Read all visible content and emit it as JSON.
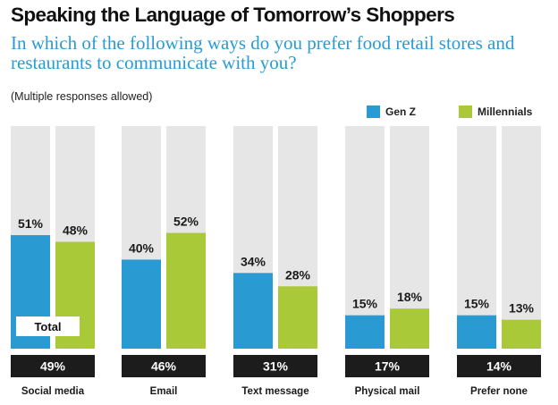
{
  "header": {
    "title": "Speaking the Language of Tomorrow’s Shoppers",
    "subtitle": "In which of the following ways do you prefer food retail stores and restaurants to communicate with you?",
    "note": "(Multiple responses allowed)"
  },
  "colors": {
    "genz": "#2a9bd2",
    "millennials": "#a9c938",
    "track": "#e6e6e6",
    "total_bg": "#1c1c1c",
    "title": "#111111",
    "subtitle": "#2a9bd2"
  },
  "chart_data": {
    "type": "bar",
    "title": "Speaking the Language of Tomorrow’s Shoppers",
    "categories": [
      "Social media",
      "Email",
      "Text message",
      "Physical mail",
      "Prefer none"
    ],
    "series": [
      {
        "name": "Gen Z",
        "values": [
          51,
          40,
          34,
          15,
          15
        ],
        "labels": [
          "51%",
          "40%",
          "34%",
          "15%",
          "15%"
        ]
      },
      {
        "name": "Millennials",
        "values": [
          48,
          52,
          28,
          18,
          13
        ],
        "labels": [
          "48%",
          "52%",
          "28%",
          "18%",
          "13%"
        ]
      }
    ],
    "totals": {
      "name": "Total",
      "values": [
        49,
        46,
        31,
        17,
        14
      ],
      "labels": [
        "49%",
        "46%",
        "31%",
        "17%",
        "14%"
      ]
    },
    "ylim": [
      0,
      100
    ],
    "grid": false,
    "legend": "top-right"
  }
}
